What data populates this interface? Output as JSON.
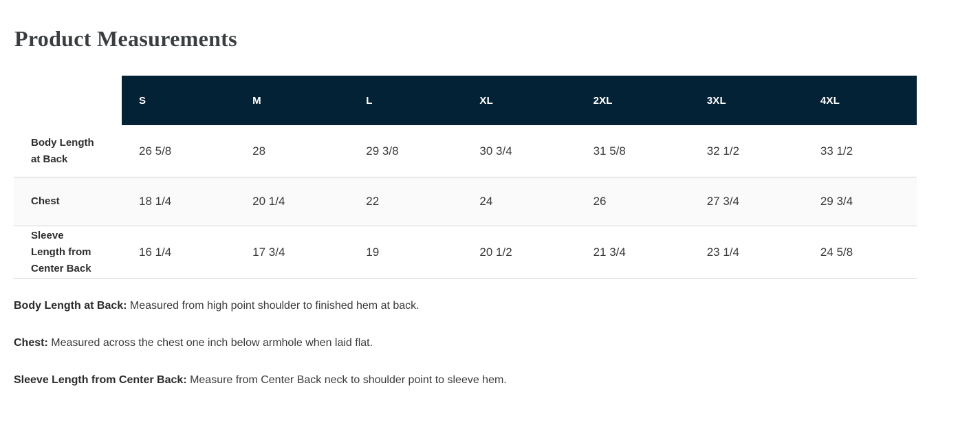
{
  "page": {
    "title": "Product Measurements"
  },
  "table": {
    "sizes": [
      "S",
      "M",
      "L",
      "XL",
      "2XL",
      "3XL",
      "4XL"
    ],
    "rows": [
      {
        "label": "Body Length at Back",
        "values": [
          "26 5/8",
          "28",
          "29 3/8",
          "30 3/4",
          "31 5/8",
          "32 1/2",
          "33 1/2"
        ]
      },
      {
        "label": "Chest",
        "values": [
          "18 1/4",
          "20 1/4",
          "22",
          "24",
          "26",
          "27 3/4",
          "29 3/4"
        ]
      },
      {
        "label": "Sleeve Length from Center Back",
        "values": [
          "16 1/4",
          "17 3/4",
          "19",
          "20 1/2",
          "21 3/4",
          "23 1/4",
          "24 5/8"
        ]
      }
    ]
  },
  "definitions": [
    {
      "term": "Body Length at Back:",
      "description": "Measured from high point shoulder to finished hem at back."
    },
    {
      "term": "Chest:",
      "description": "Measured across the chest one inch below armhole when laid flat."
    },
    {
      "term": "Sleeve Length from Center Back:",
      "description": "Measure from Center Back neck to shoulder point to sleeve hem."
    }
  ],
  "colors": {
    "header_bg": "#042235",
    "header_text": "#ffffff",
    "alt_row_bg": "#fafafa",
    "row_border": "#d4d4d4",
    "title_text": "#3b3e41",
    "body_text": "#3a3a3a"
  }
}
